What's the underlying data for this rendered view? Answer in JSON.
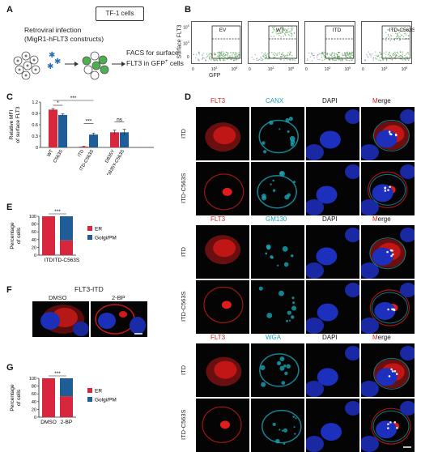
{
  "panels": {
    "A": {
      "label": "A",
      "cell_box": "TF-1 cells",
      "infection_line1": "Retroviral infection",
      "infection_line2": "(MigR1-hFLT3 constructs)",
      "facs_line1": "FACS for surface",
      "facs_line2": "FLT3 in GFP",
      "facs_sup": "+",
      "facs_line2_end": " cells"
    },
    "B": {
      "label": "B",
      "ylabel": "Surface FLT3",
      "xlabel": "GFP",
      "tick0": "0",
      "tick3": "10",
      "tick3_exp": "3",
      "tick5": "10",
      "tick5_exp": "5",
      "plots": [
        "EV",
        "WT",
        "ITD",
        "ITD-C563S"
      ]
    },
    "C": {
      "label": "C"
    },
    "D": {
      "label": "D",
      "rows": [
        {
          "name": "ITD",
          "header": "FLT3",
          "marker": "CANX"
        },
        {
          "name": "ITD-C563S"
        },
        {
          "name": "ITD",
          "header": "FLT3",
          "marker": "GM130"
        },
        {
          "name": "ITD-C563S"
        },
        {
          "name": "ITD",
          "header": "FLT3",
          "marker": "WGA"
        },
        {
          "name": "ITD-C563S"
        }
      ],
      "dapi": "DAPI",
      "merge_m": "M",
      "merge_rest": "erge"
    },
    "E": {
      "label": "E"
    },
    "F": {
      "label": "F",
      "title": "FLT3-ITD",
      "cond1": "DMSO",
      "cond2": "2-BP"
    },
    "G": {
      "label": "G"
    }
  },
  "colors": {
    "red": "#e02020",
    "cyan": "#1aa5b5",
    "navy": "#1e5a96",
    "er": "#d7263d",
    "golgi": "#1f5d96"
  },
  "chart_data": [
    {
      "type": "bar",
      "panel": "C",
      "ylabel": "Relative MFI of surface FLT3",
      "ylim": [
        0,
        1.2
      ],
      "yticks": [
        "0",
        "0.3",
        "0.6",
        "0.9",
        "1.2"
      ],
      "categories": [
        "WT",
        "C563S",
        "ITD",
        "ITD-C563S",
        "D835Y",
        "D835Y-C563S"
      ],
      "values": [
        1.0,
        0.86,
        0.02,
        0.34,
        0.4,
        0.4
      ],
      "errors": [
        0.03,
        0.03,
        0.01,
        0.04,
        0.06,
        0.08
      ],
      "bar_colors": [
        "#d7263d",
        "#1f5d96",
        "#d7263d",
        "#1f5d96",
        "#d7263d",
        "#1f5d96"
      ],
      "significance": [
        {
          "from": 0,
          "to": 1,
          "text": "*"
        },
        {
          "from": 0,
          "to": 3,
          "text": "***"
        },
        {
          "from": 2,
          "to": 3,
          "text": "***"
        },
        {
          "from": 4,
          "to": 5,
          "text": "ns"
        }
      ]
    },
    {
      "type": "bar",
      "panel": "E",
      "stacked": true,
      "ylabel": "Percentage of cells",
      "ylim": [
        0,
        100
      ],
      "yticks": [
        "0",
        "20",
        "40",
        "60",
        "80",
        "100"
      ],
      "categories": [
        "ITD",
        "ITD-C563S"
      ],
      "series": [
        {
          "name": "ER",
          "values": [
            100,
            38
          ]
        },
        {
          "name": "Golgi/PM",
          "values": [
            0,
            62
          ]
        }
      ],
      "significance": [
        {
          "from": 0,
          "to": 1,
          "text": "***"
        }
      ],
      "legend": "right"
    },
    {
      "type": "bar",
      "panel": "G",
      "stacked": true,
      "ylabel": "Percentage of cells",
      "ylim": [
        0,
        100
      ],
      "yticks": [
        "0",
        "20",
        "40",
        "60",
        "80",
        "100"
      ],
      "categories": [
        "DMSO",
        "2-BP"
      ],
      "series": [
        {
          "name": "ER",
          "values": [
            100,
            54
          ]
        },
        {
          "name": "Golgi/PM",
          "values": [
            0,
            46
          ]
        }
      ],
      "significance": [
        {
          "from": 0,
          "to": 1,
          "text": "***"
        }
      ],
      "legend": "right"
    }
  ]
}
